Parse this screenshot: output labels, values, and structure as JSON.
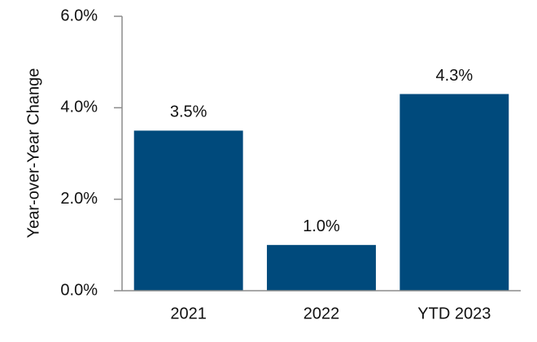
{
  "chart_data": {
    "type": "bar",
    "y_axis_label": "Year-over-Year Change",
    "categories": [
      "2021",
      "2022",
      "YTD 2023"
    ],
    "values": [
      3.5,
      1.0,
      4.3
    ],
    "value_labels": [
      "3.5%",
      "1.0%",
      "4.3%"
    ],
    "color": "#004a7c",
    "ylim": [
      0,
      6
    ],
    "yticks": [
      {
        "value": 0,
        "label": "0.0%"
      },
      {
        "value": 2,
        "label": "2.0%"
      },
      {
        "value": 4,
        "label": "4.0%"
      },
      {
        "value": 6,
        "label": "6.0%"
      }
    ]
  }
}
